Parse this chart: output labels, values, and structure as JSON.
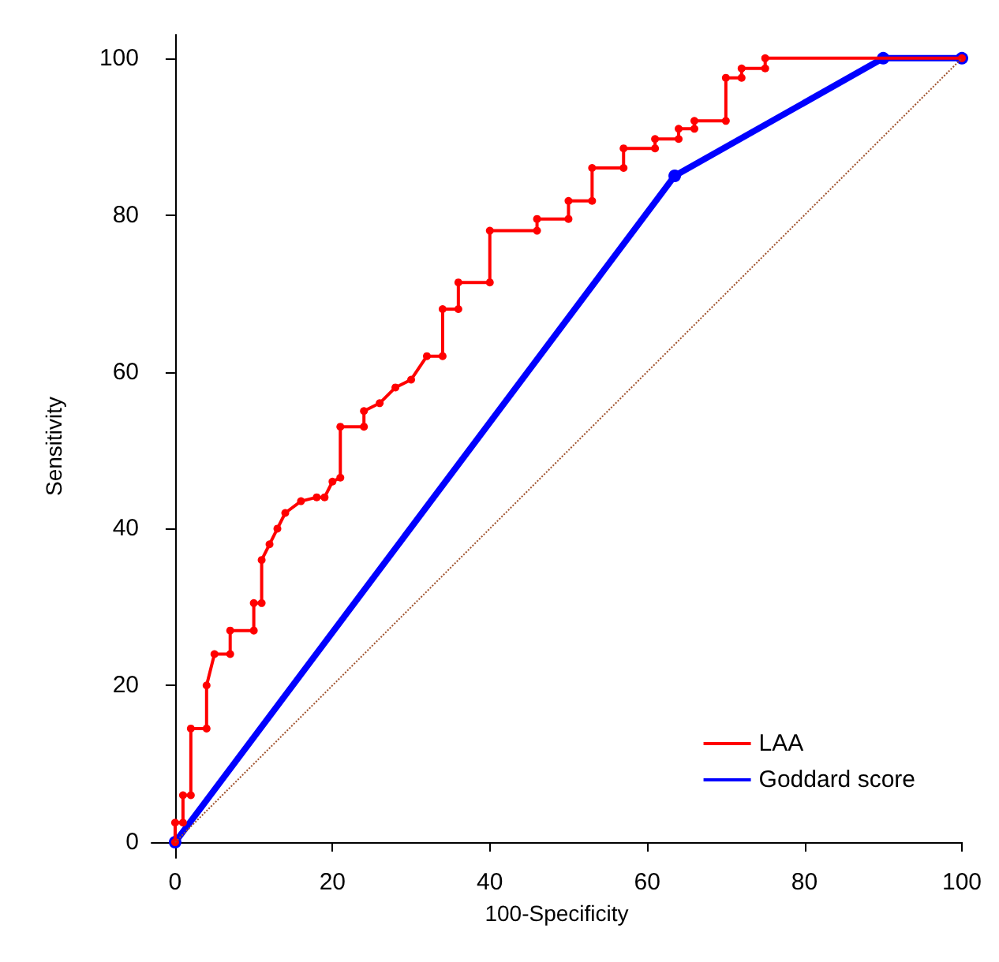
{
  "chart_data": {
    "type": "line",
    "xlabel": "100-Specificity",
    "ylabel": "Sensitivity",
    "xlim": [
      -3,
      100
    ],
    "ylim": [
      -2,
      103
    ],
    "xticks": [
      0,
      20,
      40,
      60,
      80,
      100
    ],
    "yticks": [
      0,
      20,
      40,
      60,
      80,
      100
    ],
    "grid": false,
    "legend": "bottom right",
    "marker": "circle",
    "line_style": "solid",
    "series": [
      {
        "name": "LAA",
        "color": "#ff0000",
        "x": [
          0,
          0,
          1,
          1,
          2,
          2,
          4,
          4,
          5,
          7,
          7,
          10,
          10,
          11,
          11,
          12,
          13,
          14,
          16,
          18,
          19,
          20,
          21,
          21,
          24,
          24,
          26,
          28,
          30,
          32,
          34,
          34,
          36,
          36,
          40,
          40,
          46,
          46,
          50,
          50,
          53,
          53,
          57,
          57,
          61,
          61,
          64,
          64,
          66,
          66,
          70,
          70,
          72,
          72,
          75,
          75,
          100
        ],
        "values": [
          0,
          2.5,
          2.5,
          6,
          6,
          14.5,
          14.5,
          20,
          24,
          24,
          27,
          27,
          30.5,
          30.5,
          36,
          38,
          40,
          42,
          43.5,
          44,
          44,
          46,
          46.5,
          53,
          53,
          55,
          56,
          58,
          59,
          62,
          62,
          68,
          68,
          71.4,
          71.4,
          78,
          78,
          79.5,
          79.5,
          81.8,
          81.8,
          86,
          86,
          88.5,
          88.5,
          89.7,
          89.7,
          91,
          91,
          92,
          92,
          97.5,
          97.5,
          98.7,
          98.7,
          100,
          100
        ]
      },
      {
        "name": "Goddard score",
        "color": "#0000ff",
        "x": [
          0,
          63.5,
          90,
          100
        ],
        "values": [
          0,
          85,
          100,
          100
        ]
      },
      {
        "type": "line",
        "color": "#a0522d",
        "line_style": "dotted",
        "marker": "none",
        "x": [
          0,
          100
        ],
        "values": [
          0,
          100
        ]
      }
    ]
  }
}
